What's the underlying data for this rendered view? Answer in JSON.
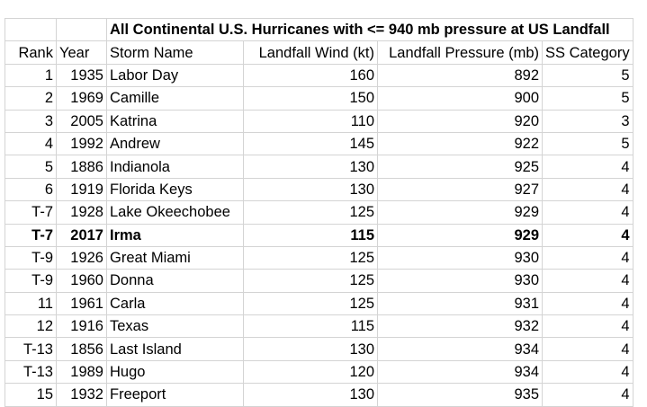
{
  "table": {
    "title": "All Continental U.S. Hurricanes with <= 940 mb pressure at US Landfall",
    "headers": [
      "Rank",
      "Year",
      "Storm Name",
      "Landfall Wind (kt)",
      "Landfall Pressure (mb)",
      "SS Category"
    ],
    "rows": [
      {
        "rank": "1",
        "year": "1935",
        "name": "Labor Day",
        "wind": "160",
        "pressure": "892",
        "category": "5"
      },
      {
        "rank": "2",
        "year": "1969",
        "name": "Camille",
        "wind": "150",
        "pressure": "900",
        "category": "5"
      },
      {
        "rank": "3",
        "year": "2005",
        "name": "Katrina",
        "wind": "110",
        "pressure": "920",
        "category": "3"
      },
      {
        "rank": "4",
        "year": "1992",
        "name": "Andrew",
        "wind": "145",
        "pressure": "922",
        "category": "5"
      },
      {
        "rank": "5",
        "year": "1886",
        "name": "Indianola",
        "wind": "130",
        "pressure": "925",
        "category": "4"
      },
      {
        "rank": "6",
        "year": "1919",
        "name": "Florida Keys",
        "wind": "130",
        "pressure": "927",
        "category": "4"
      },
      {
        "rank": "T-7",
        "year": "1928",
        "name": "Lake Okeechobee",
        "wind": "125",
        "pressure": "929",
        "category": "4"
      },
      {
        "rank": "T-7",
        "year": "2017",
        "name": "Irma",
        "wind": "115",
        "pressure": "929",
        "category": "4",
        "bold": true
      },
      {
        "rank": "T-9",
        "year": "1926",
        "name": "Great Miami",
        "wind": "125",
        "pressure": "930",
        "category": "4"
      },
      {
        "rank": "T-9",
        "year": "1960",
        "name": "Donna",
        "wind": "125",
        "pressure": "930",
        "category": "4"
      },
      {
        "rank": "11",
        "year": "1961",
        "name": "Carla",
        "wind": "125",
        "pressure": "931",
        "category": "4"
      },
      {
        "rank": "12",
        "year": "1916",
        "name": "Texas",
        "wind": "115",
        "pressure": "932",
        "category": "4"
      },
      {
        "rank": "T-13",
        "year": "1856",
        "name": "Last Island",
        "wind": "130",
        "pressure": "934",
        "category": "4"
      },
      {
        "rank": "T-13",
        "year": "1989",
        "name": "Hugo",
        "wind": "120",
        "pressure": "934",
        "category": "4"
      },
      {
        "rank": "15",
        "year": "1932",
        "name": "Freeport",
        "wind": "130",
        "pressure": "935",
        "category": "4"
      }
    ]
  }
}
